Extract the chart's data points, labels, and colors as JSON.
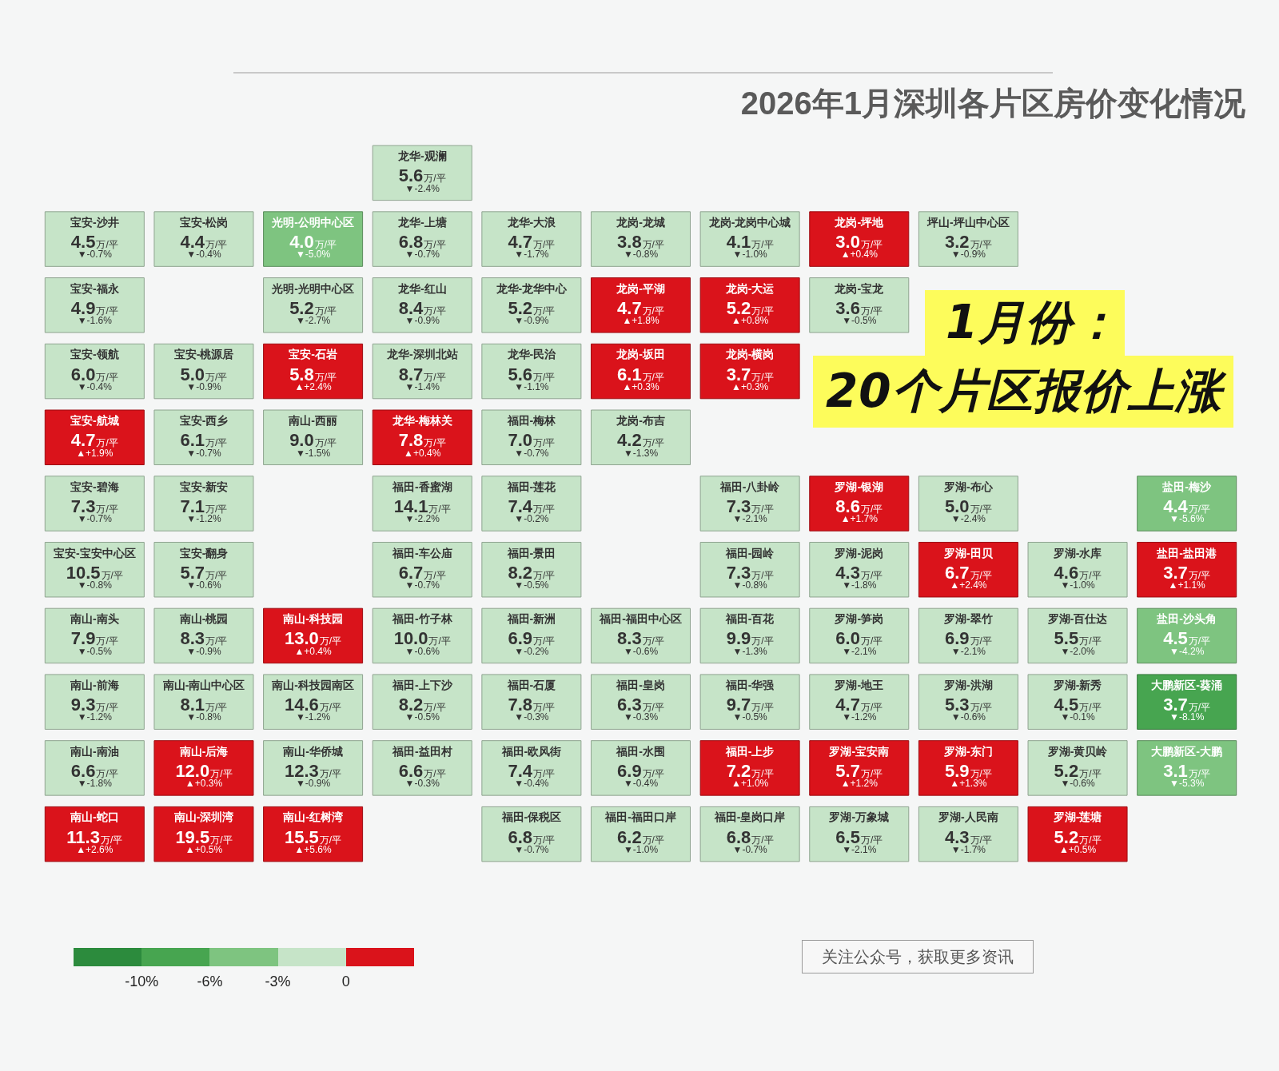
{
  "chart_data": {
    "type": "other",
    "title": "2026年1月深圳各片区房价变化情况",
    "annotations": [
      "1月份：",
      "20个片区报价上涨",
      "关注公众号，获取更多资讯",
      "-10%",
      "-6%",
      "-3%",
      "0"
    ],
    "categories": [
      null,
      null,
      null,
      "龙华-观澜",
      null,
      null,
      null,
      null,
      null,
      null,
      null,
      "宝安-沙井",
      "宝安-松岗",
      "光明-公明中心区",
      "龙华-上塘",
      "龙华-大浪",
      "龙岗-龙城",
      "龙岗-龙岗中心城",
      "龙岗-坪地",
      "坪山-坪山中心区",
      null,
      null,
      "宝安-福永",
      null,
      "光明-光明中心区",
      "龙华-红山",
      "龙华-龙华中心",
      "龙岗-平湖",
      "龙岗-大运",
      "龙岗-宝龙",
      null,
      null,
      null,
      "宝安-领航",
      "宝安-桃源居",
      "宝安-石岩",
      "龙华-深圳北站",
      "龙华-民治",
      "龙岗-坂田",
      "龙岗-横岗",
      null,
      null,
      null,
      null,
      "宝安-航城",
      "宝安-西乡",
      "南山-西丽",
      "龙华-梅林关",
      "福田-梅林",
      "龙岗-布吉",
      null,
      null,
      null,
      null,
      null,
      "宝安-碧海",
      "宝安-新安",
      null,
      "福田-香蜜湖",
      "福田-莲花",
      null,
      "福田-八卦岭",
      "罗湖-银湖",
      "罗湖-布心",
      null,
      "盐田-梅沙",
      "宝安-宝安中心区",
      "宝安-翻身",
      null,
      "福田-车公庙",
      "福田-景田",
      null,
      "福田-园岭",
      "罗湖-泥岗",
      "罗湖-田贝",
      "罗湖-水库",
      "盐田-盐田港",
      "南山-南头",
      "南山-桃园",
      "南山-科技园",
      "福田-竹子林",
      "福田-新洲",
      "福田-福田中心区",
      "福田-百花",
      "罗湖-笋岗",
      "罗湖-翠竹",
      "罗湖-百仕达",
      "盐田-沙头角",
      "南山-前海",
      "南山-南山中心区",
      "南山-科技园南区",
      "福田-上下沙",
      "福田-石厦",
      "福田-皇岗",
      "福田-华强",
      "罗湖-地王",
      "罗湖-洪湖",
      "罗湖-新秀",
      "大鹏新区-葵涌",
      "南山-南油",
      "南山-后海",
      "南山-华侨城",
      "福田-益田村",
      "福田-欧风街",
      "福田-水围",
      "福田-上步",
      "罗湖-宝安南",
      "罗湖-东门",
      "罗湖-黄贝岭",
      "大鹏新区-大鹏",
      "南山-蛇口",
      "南山-深圳湾",
      "南山-红树湾",
      null,
      "福田-保税区",
      "福田-福田口岸",
      "福田-皇岗口岸",
      "罗湖-万象城",
      "罗湖-人民南",
      "罗湖-莲塘",
      null
    ],
    "series": [
      {
        "values": [
          null,
          null,
          null,
          -2.4,
          null,
          null,
          null,
          null,
          null,
          null,
          null,
          -0.7,
          -0.4,
          -5.0,
          -0.7,
          -1.7,
          -0.8,
          -1.0,
          0.4,
          -0.9,
          null,
          null,
          -1.6,
          null,
          -2.7,
          -0.9,
          -0.9,
          1.8,
          0.8,
          -0.5,
          null,
          null,
          null,
          -0.4,
          -0.9,
          2.4,
          -1.4,
          -1.1,
          0.3,
          0.3,
          null,
          null,
          null,
          null,
          1.9,
          -0.7,
          -1.5,
          0.4,
          -0.7,
          -1.3,
          null,
          null,
          null,
          null,
          null,
          -0.7,
          -1.2,
          null,
          -2.2,
          -0.2,
          null,
          -2.1,
          1.7,
          -2.4,
          null,
          -5.6,
          -0.8,
          -0.6,
          null,
          -0.7,
          -0.5,
          null,
          -0.8,
          -1.8,
          2.4,
          -1.0,
          1.1,
          -0.5,
          -0.9,
          0.4,
          -0.6,
          -0.2,
          -0.6,
          -1.3,
          -2.1,
          -2.1,
          -2.0,
          -4.2,
          -1.2,
          -0.8,
          -1.2,
          -0.5,
          -0.3,
          -0.3,
          -0.5,
          -1.2,
          -0.6,
          -0.1,
          -8.1,
          -1.8,
          0.3,
          -0.9,
          -0.3,
          -0.4,
          -0.4,
          1.0,
          1.2,
          1.3,
          -0.6,
          -5.3,
          2.6,
          0.5,
          5.6,
          null,
          -0.7,
          -1.0,
          -0.7,
          -2.1,
          -1.7,
          0.5,
          null
        ],
        "value_labels": [
          null,
          null,
          null,
          "▼-2.4%",
          null,
          null,
          null,
          null,
          null,
          null,
          null,
          "▼-0.7%",
          "▼-0.4%",
          "▼-5.0%",
          "▼-0.7%",
          "▼-1.7%",
          "▼-0.8%",
          "▼-1.0%",
          "▲+0.4%",
          "▼-0.9%",
          null,
          null,
          "▼-1.6%",
          null,
          "▼-2.7%",
          "▼-0.9%",
          "▼-0.9%",
          "▲+1.8%",
          "▲+0.8%",
          "▼-0.5%",
          null,
          null,
          null,
          "▼-0.4%",
          "▼-0.9%",
          "▲+2.4%",
          "▼-1.4%",
          "▼-1.1%",
          "▲+0.3%",
          "▲+0.3%",
          null,
          null,
          null,
          null,
          "▲+1.9%",
          "▼-0.7%",
          "▼-1.5%",
          "▲+0.4%",
          "▼-0.7%",
          "▼-1.3%",
          null,
          null,
          null,
          null,
          null,
          "▼-0.7%",
          "▼-1.2%",
          null,
          "▼-2.2%",
          "▼-0.2%",
          null,
          "▼-2.1%",
          "▲+1.7%",
          "▼-2.4%",
          null,
          "▼-5.6%",
          "▼-0.8%",
          "▼-0.6%",
          null,
          "▼-0.7%",
          "▼-0.5%",
          null,
          "▼-0.8%",
          "▼-1.8%",
          "▲+2.4%",
          "▼-1.0%",
          "▲+1.1%",
          "▼-0.5%",
          "▼-0.9%",
          "▲+0.4%",
          "▼-0.6%",
          "▼-0.2%",
          "▼-0.6%",
          "▼-1.3%",
          "▼-2.1%",
          "▼-2.1%",
          "▼-2.0%",
          "▼-4.2%",
          "▼-1.2%",
          "▼-0.8%",
          "▼-1.2%",
          "▼-0.5%",
          "▼-0.3%",
          "▼-0.3%",
          "▼-0.5%",
          "▼-1.2%",
          "▼-0.6%",
          "▼-0.1%",
          "▼-8.1%",
          "▼-1.8%",
          "▲+0.3%",
          "▼-0.9%",
          "▼-0.3%",
          "▼-0.4%",
          "▼-0.4%",
          "▲+1.0%",
          "▲+1.2%",
          "▲+1.3%",
          "▼-0.6%",
          "▼-5.3%",
          "▲+2.6%",
          "▲+0.5%",
          "▲+5.6%",
          null,
          "▼-0.7%",
          "▼-1.0%",
          "▼-0.7%",
          "▼-2.1%",
          "▼-1.7%",
          "▲+0.5%",
          null
        ],
        "colors": [
          null,
          null,
          null,
          "#c6e4c8",
          null,
          null,
          null,
          null,
          null,
          null,
          null,
          "#c6e4c8",
          "#c6e4c8",
          "#7ec480",
          "#c6e4c8",
          "#c6e4c8",
          "#c6e4c8",
          "#c6e4c8",
          "#da131b",
          "#c6e4c8",
          null,
          null,
          "#c6e4c8",
          null,
          "#c6e4c8",
          "#c6e4c8",
          "#c6e4c8",
          "#da131b",
          "#da131b",
          "#c6e4c8",
          null,
          null,
          null,
          "#c6e4c8",
          "#c6e4c8",
          "#da131b",
          "#c6e4c8",
          "#c6e4c8",
          "#da131b",
          "#da131b",
          null,
          null,
          null,
          null,
          "#da131b",
          "#c6e4c8",
          "#c6e4c8",
          "#da131b",
          "#c6e4c8",
          "#c6e4c8",
          null,
          null,
          null,
          null,
          null,
          "#c6e4c8",
          "#c6e4c8",
          null,
          "#c6e4c8",
          "#c6e4c8",
          null,
          "#c6e4c8",
          "#da131b",
          "#c6e4c8",
          null,
          "#7ec480",
          "#c6e4c8",
          "#c6e4c8",
          null,
          "#c6e4c8",
          "#c6e4c8",
          null,
          "#c6e4c8",
          "#c6e4c8",
          "#da131b",
          "#c6e4c8",
          "#da131b",
          "#c6e4c8",
          "#c6e4c8",
          "#da131b",
          "#c6e4c8",
          "#c6e4c8",
          "#c6e4c8",
          "#c6e4c8",
          "#c6e4c8",
          "#c6e4c8",
          "#c6e4c8",
          "#7ec480",
          "#c6e4c8",
          "#c6e4c8",
          "#c6e4c8",
          "#c6e4c8",
          "#c6e4c8",
          "#c6e4c8",
          "#c6e4c8",
          "#c6e4c8",
          "#c6e4c8",
          "#c6e4c8",
          "#47a550",
          "#c6e4c8",
          "#da131b",
          "#c6e4c8",
          "#c6e4c8",
          "#c6e4c8",
          "#c6e4c8",
          "#da131b",
          "#da131b",
          "#da131b",
          "#c6e4c8",
          "#7ec480",
          "#da131b",
          "#da131b",
          "#da131b",
          null,
          "#c6e4c8",
          "#c6e4c8",
          "#c6e4c8",
          "#c6e4c8",
          "#c6e4c8",
          "#da131b",
          null
        ]
      },
      {
        "values": [
          null,
          null,
          null,
          5.6,
          null,
          null,
          null,
          null,
          null,
          null,
          null,
          4.5,
          4.4,
          4.0,
          6.8,
          4.7,
          3.8,
          4.1,
          3.0,
          3.2,
          null,
          null,
          4.9,
          null,
          5.2,
          8.4,
          5.2,
          4.7,
          5.2,
          3.6,
          null,
          null,
          null,
          6.0,
          5.0,
          5.8,
          8.7,
          5.6,
          6.1,
          3.7,
          null,
          null,
          null,
          null,
          4.7,
          6.1,
          9.0,
          7.8,
          7.0,
          4.2,
          null,
          null,
          null,
          null,
          null,
          7.3,
          7.1,
          null,
          14.1,
          7.4,
          null,
          7.3,
          8.6,
          5.0,
          null,
          4.4,
          10.5,
          5.7,
          null,
          6.7,
          8.2,
          null,
          7.3,
          4.3,
          6.7,
          4.6,
          3.7,
          7.9,
          8.3,
          13.0,
          10.0,
          6.9,
          8.3,
          9.9,
          6.0,
          6.9,
          5.5,
          4.5,
          9.3,
          8.1,
          14.6,
          8.2,
          7.8,
          6.3,
          9.7,
          4.7,
          5.3,
          4.5,
          3.7,
          6.6,
          12.0,
          12.3,
          6.6,
          7.4,
          6.9,
          7.2,
          5.7,
          5.9,
          5.2,
          3.1,
          11.3,
          19.5,
          15.5,
          null,
          6.8,
          6.2,
          6.8,
          6.5,
          4.3,
          5.2,
          null
        ],
        "value_labels": [
          null,
          null,
          null,
          "5.6万/平",
          null,
          null,
          null,
          null,
          null,
          null,
          null,
          "4.5万/平",
          "4.4万/平",
          "4.0万/平",
          "6.8万/平",
          "4.7万/平",
          "3.8万/平",
          "4.1万/平",
          "3.0万/平",
          "3.2万/平",
          null,
          null,
          "4.9万/平",
          null,
          "5.2万/平",
          "8.4万/平",
          "5.2万/平",
          "4.7万/平",
          "5.2万/平",
          "3.6万/平",
          null,
          null,
          null,
          "6.0万/平",
          "5.0万/平",
          "5.8万/平",
          "8.7万/平",
          "5.6万/平",
          "6.1万/平",
          "3.7万/平",
          null,
          null,
          null,
          null,
          "4.7万/平",
          "6.1万/平",
          "9.0万/平",
          "7.8万/平",
          "7.0万/平",
          "4.2万/平",
          null,
          null,
          null,
          null,
          null,
          "7.3万/平",
          "7.1万/平",
          null,
          "14.1万/平",
          "7.4万/平",
          null,
          "7.3万/平",
          "8.6万/平",
          "5.0万/平",
          null,
          "4.4万/平",
          "10.5万/平",
          "5.7万/平",
          null,
          "6.7万/平",
          "8.2万/平",
          null,
          "7.3万/平",
          "4.3万/平",
          "6.7万/平",
          "4.6万/平",
          "3.7万/平",
          "7.9万/平",
          "8.3万/平",
          "13.0万/平",
          "10.0万/平",
          "6.9万/平",
          "8.3万/平",
          "9.9万/平",
          "6.0万/平",
          "6.9万/平",
          "5.5万/平",
          "4.5万/平",
          "9.3万/平",
          "8.1万/平",
          "14.6万/平",
          "8.2万/平",
          "7.8万/平",
          "6.3万/平",
          "9.7万/平",
          "4.7万/平",
          "5.3万/平",
          "4.5万/平",
          "3.7万/平",
          "6.6万/平",
          "12.0万/平",
          "12.3万/平",
          "6.6万/平",
          "7.4万/平",
          "6.9万/平",
          "7.2万/平",
          "5.7万/平",
          "5.9万/平",
          "5.2万/平",
          "3.1万/平",
          "11.3万/平",
          "19.5万/平",
          "15.5万/平",
          null,
          "6.8万/平",
          "6.2万/平",
          "6.8万/平",
          "6.5万/平",
          "4.3万/平",
          "5.2万/平",
          null
        ]
      }
    ]
  }
}
